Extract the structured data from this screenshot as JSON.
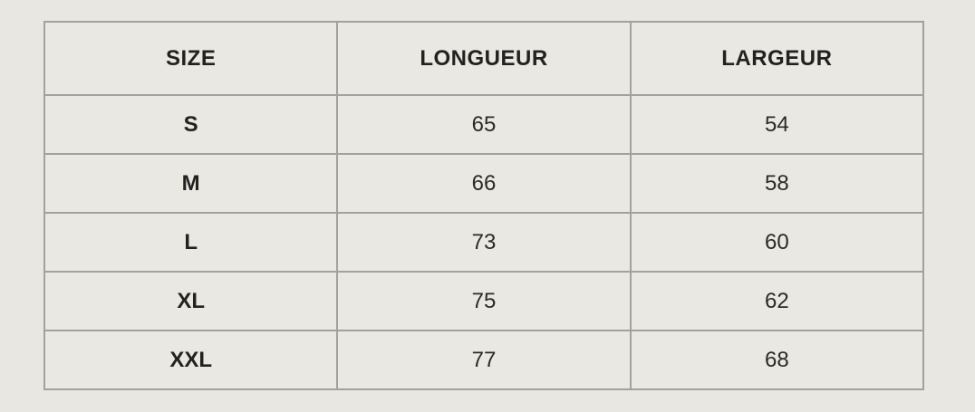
{
  "colors": {
    "page_background": "#e9e7e2",
    "grid_line": "#a3a19b",
    "text": "#2b2a26"
  },
  "table": {
    "headers": [
      "SIZE",
      "LONGUEUR",
      "LARGEUR"
    ],
    "rows": [
      {
        "size": "S",
        "longueur": "65",
        "largeur": "54"
      },
      {
        "size": "M",
        "longueur": "66",
        "largeur": "58"
      },
      {
        "size": "L",
        "longueur": "73",
        "largeur": "60"
      },
      {
        "size": "XL",
        "longueur": "75",
        "largeur": "62"
      },
      {
        "size": "XXL",
        "longueur": "77",
        "largeur": "68"
      }
    ]
  },
  "chart_data": {
    "type": "table",
    "columns": [
      "SIZE",
      "LONGUEUR",
      "LARGEUR"
    ],
    "rows": [
      [
        "S",
        65,
        54
      ],
      [
        "M",
        66,
        58
      ],
      [
        "L",
        73,
        60
      ],
      [
        "XL",
        75,
        62
      ],
      [
        "XXL",
        77,
        68
      ]
    ],
    "title": ""
  }
}
